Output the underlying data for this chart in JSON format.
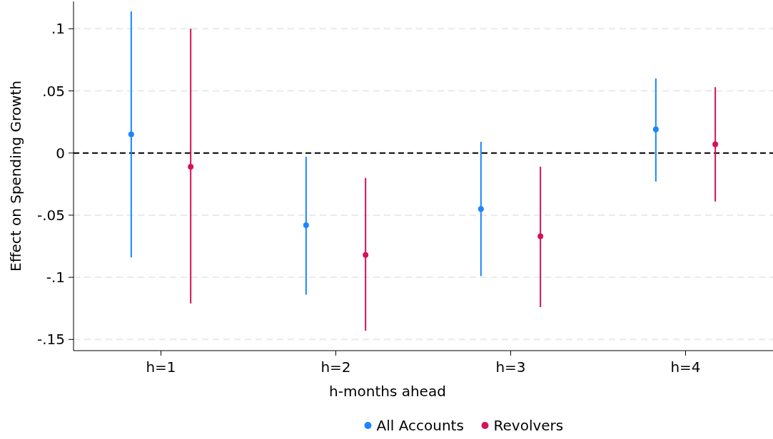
{
  "chart_data": {
    "type": "scatter",
    "xlabel": "h-months ahead",
    "ylabel": "Effect on Spending Growth",
    "categories": [
      "h=1",
      "h=2",
      "h=3",
      "h=4"
    ],
    "series": [
      {
        "name": "All Accounts",
        "color": "#1a85ff",
        "values": [
          0.015,
          -0.058,
          -0.045,
          0.019
        ],
        "errors": [
          [
            -0.084,
            0.114
          ],
          [
            -0.114,
            -0.003
          ],
          [
            -0.099,
            0.009
          ],
          [
            -0.023,
            0.06
          ]
        ]
      },
      {
        "name": "Revolvers",
        "color": "#d41159",
        "values": [
          -0.011,
          -0.082,
          -0.067,
          0.007
        ],
        "errors": [
          [
            -0.121,
            0.1
          ],
          [
            -0.143,
            -0.02
          ],
          [
            -0.124,
            -0.011
          ],
          [
            -0.039,
            0.053
          ]
        ]
      }
    ],
    "ylim": [
      -0.159,
      0.122
    ],
    "yticks": [
      {
        "value": -0.15,
        "label": "-.15"
      },
      {
        "value": -0.1,
        "label": "-.1"
      },
      {
        "value": -0.05,
        "label": "-.05"
      },
      {
        "value": 0,
        "label": "0"
      },
      {
        "value": 0.05,
        "label": ".05"
      },
      {
        "value": 0.1,
        "label": ".1"
      }
    ],
    "grid": "y",
    "legend": "bottom",
    "marker": "circle",
    "ref_lines": [
      {
        "axis": "y",
        "value": 0,
        "color": "#000000",
        "line_style": "dashed"
      }
    ]
  }
}
